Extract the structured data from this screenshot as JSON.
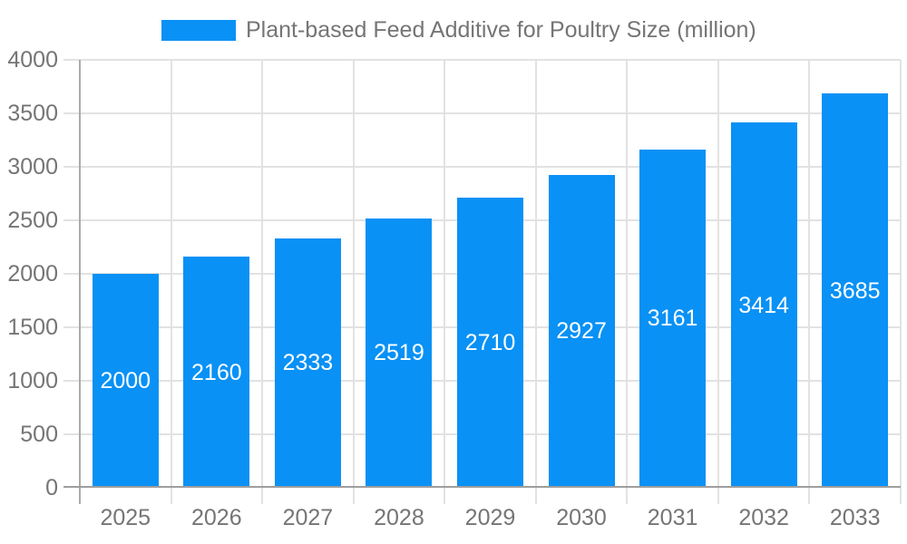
{
  "colors": {
    "bar": "#0991f5",
    "grid": "#e2e2e2",
    "axis_x": "#9e9e9e",
    "axis_y": "#ababab",
    "tick_text": "#757575",
    "value_label": "#ffffff",
    "background": "#ffffff"
  },
  "chart_data": {
    "type": "bar",
    "categories": [
      "2025",
      "2026",
      "2027",
      "2028",
      "2029",
      "2030",
      "2031",
      "2032",
      "2033"
    ],
    "series": [
      {
        "name": "Plant-based Feed Additive for Poultry Size (million)",
        "values": [
          2000,
          2160,
          2333,
          2519,
          2710,
          2927,
          3161,
          3414,
          3685
        ]
      }
    ],
    "xlabel": "",
    "ylabel": "",
    "ylim": [
      0,
      4000
    ],
    "yticks": [
      0,
      500,
      1000,
      1500,
      2000,
      2500,
      3000,
      3500,
      4000
    ],
    "grid": true,
    "legend_position": "top",
    "value_labels": "inside-center"
  }
}
